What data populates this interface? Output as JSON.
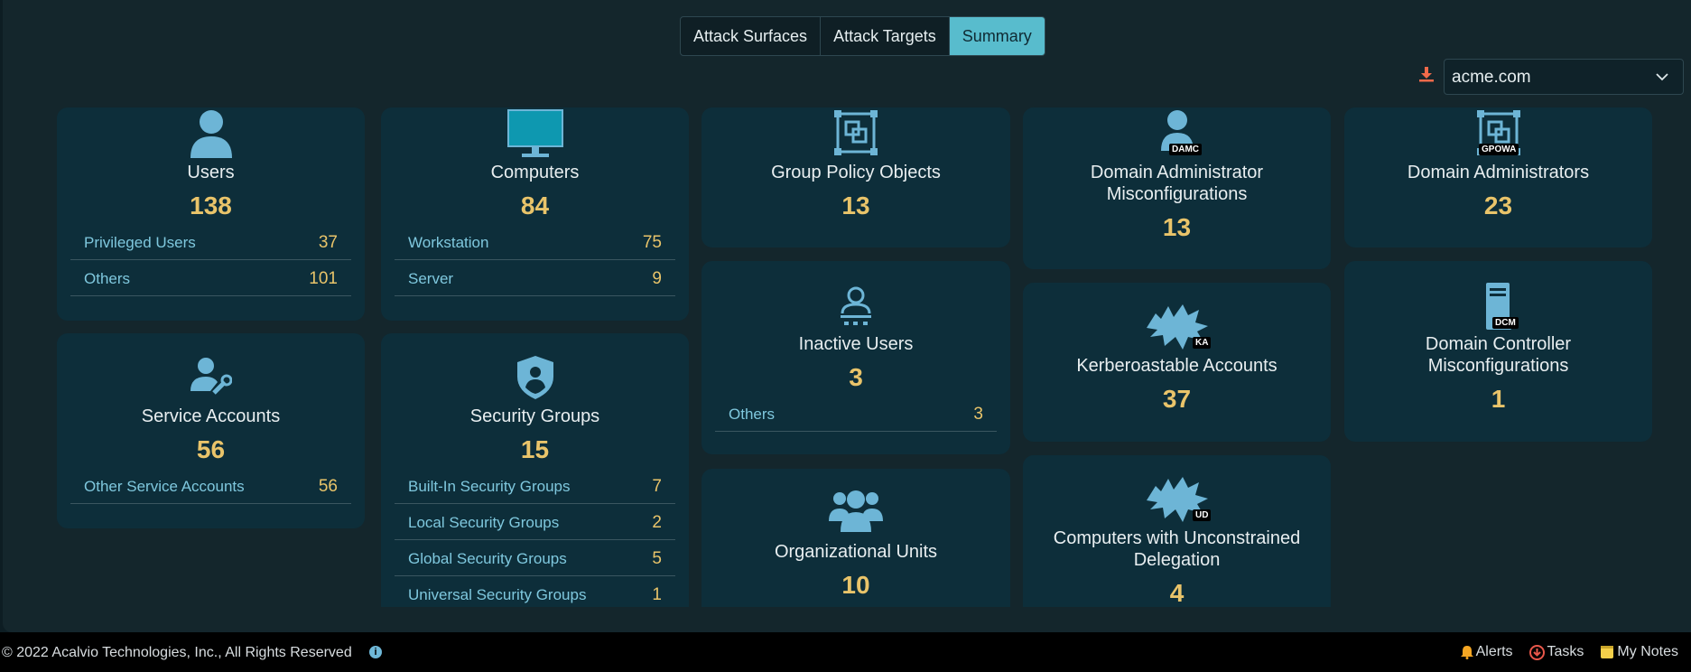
{
  "tabs": [
    {
      "label": "Attack Surfaces",
      "active": false
    },
    {
      "label": "Attack Targets",
      "active": false
    },
    {
      "label": "Summary",
      "active": true
    }
  ],
  "domain_select": {
    "value": "acme.com"
  },
  "cards": {
    "users": {
      "title": "Users",
      "count": "138",
      "rows": [
        {
          "label": "Privileged Users",
          "value": "37"
        },
        {
          "label": "Others",
          "value": "101"
        }
      ]
    },
    "computers": {
      "title": "Computers",
      "count": "84",
      "rows": [
        {
          "label": "Workstation",
          "value": "75"
        },
        {
          "label": "Server",
          "value": "9"
        }
      ]
    },
    "gpo": {
      "title": "Group Policy Objects",
      "count": "13"
    },
    "damc": {
      "title_line1": "Domain Administrator",
      "title_line2": "Misconfigurations",
      "count": "13",
      "badge": "DAMC"
    },
    "domain_admins": {
      "title": "Domain Administrators",
      "count": "23",
      "badge": "GPOWA"
    },
    "inactive": {
      "title": "Inactive Users",
      "count": "3",
      "rows": [
        {
          "label": "Others",
          "value": "3"
        }
      ]
    },
    "kerberoastable": {
      "title": "Kerberoastable Accounts",
      "count": "37",
      "badge": "KA"
    },
    "dcm": {
      "title_line1": "Domain Controller",
      "title_line2": "Misconfigurations",
      "count": "1",
      "badge": "DCM"
    },
    "service_accounts": {
      "title": "Service Accounts",
      "count": "56",
      "rows": [
        {
          "label": "Other Service Accounts",
          "value": "56"
        }
      ]
    },
    "security_groups": {
      "title": "Security Groups",
      "count": "15",
      "rows": [
        {
          "label": "Built-In Security Groups",
          "value": "7"
        },
        {
          "label": "Local Security Groups",
          "value": "2"
        },
        {
          "label": "Global Security Groups",
          "value": "5"
        },
        {
          "label": "Universal Security Groups",
          "value": "1"
        }
      ]
    },
    "ou": {
      "title": "Organizational Units",
      "count": "10"
    },
    "unconstrained": {
      "title_line1": "Computers with Unconstrained",
      "title_line2": "Delegation",
      "count": "4",
      "badge": "UD"
    }
  },
  "footer": {
    "copyright": "© 2022 Acalvio Technologies, Inc., All Rights Reserved",
    "info_icon": "i",
    "alerts": "Alerts",
    "tasks": "Tasks",
    "notes": "My Notes"
  },
  "colors": {
    "accent": "#58bccd",
    "card_bg": "#0d2e3a",
    "count": "#e9c46a",
    "link": "#7fc8de"
  }
}
